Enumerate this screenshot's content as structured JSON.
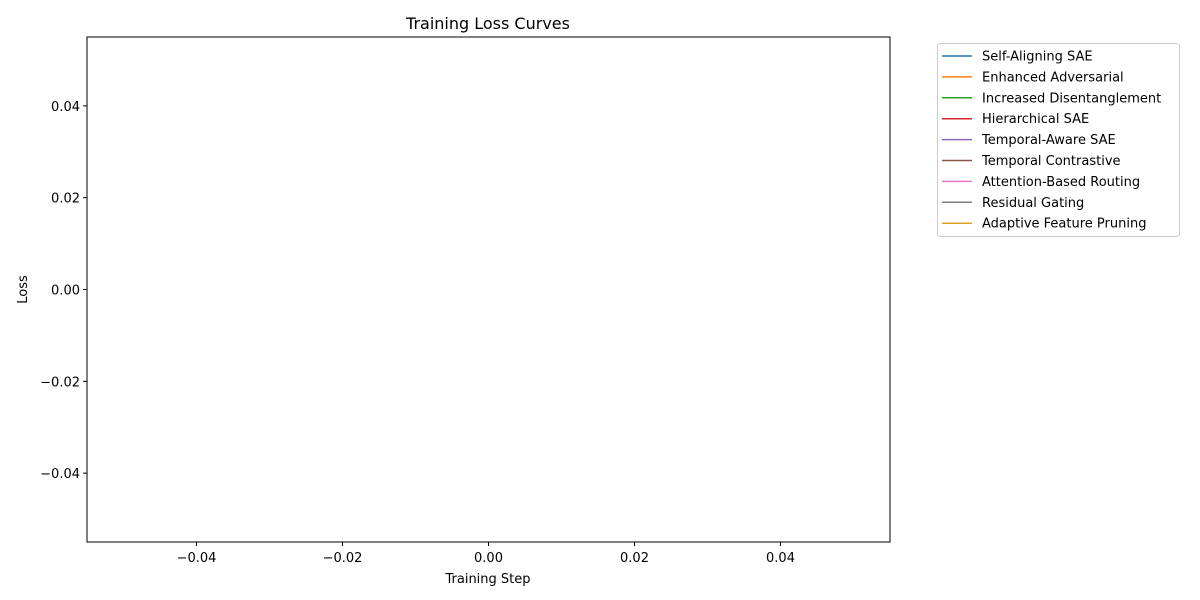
{
  "chart_data": {
    "type": "line",
    "title": "Training Loss Curves",
    "xlabel": "Training Step",
    "ylabel": "Loss",
    "xlim": [
      -0.055,
      0.055
    ],
    "ylim": [
      -0.055,
      0.055
    ],
    "x_ticks": [
      -0.04,
      -0.02,
      0.0,
      0.02,
      0.04
    ],
    "x_tick_labels": [
      "−0.04",
      "−0.02",
      "0.00",
      "0.02",
      "0.04"
    ],
    "y_ticks": [
      -0.04,
      -0.02,
      0.0,
      0.02,
      0.04
    ],
    "y_tick_labels": [
      "−0.04",
      "−0.02",
      "0.00",
      "0.02",
      "0.04"
    ],
    "grid": false,
    "legend_placement": "outside-top-right",
    "series": [
      {
        "name": "Self-Aligning SAE",
        "color": "#1f77b4",
        "x": [],
        "values": []
      },
      {
        "name": "Enhanced Adversarial",
        "color": "#ff7f0e",
        "x": [],
        "values": []
      },
      {
        "name": "Increased Disentanglement",
        "color": "#2ca02c",
        "x": [],
        "values": []
      },
      {
        "name": "Hierarchical SAE",
        "color": "#d62728",
        "x": [],
        "values": []
      },
      {
        "name": "Temporal-Aware SAE",
        "color": "#9467bd",
        "x": [],
        "values": []
      },
      {
        "name": "Temporal Contrastive",
        "color": "#8c564b",
        "x": [],
        "values": []
      },
      {
        "name": "Attention-Based Routing",
        "color": "#e377c2",
        "x": [],
        "values": []
      },
      {
        "name": "Residual Gating",
        "color": "#7f7f7f",
        "x": [],
        "values": []
      },
      {
        "name": "Adaptive Feature Pruning",
        "color": "#daa520",
        "x": [],
        "values": []
      }
    ]
  }
}
